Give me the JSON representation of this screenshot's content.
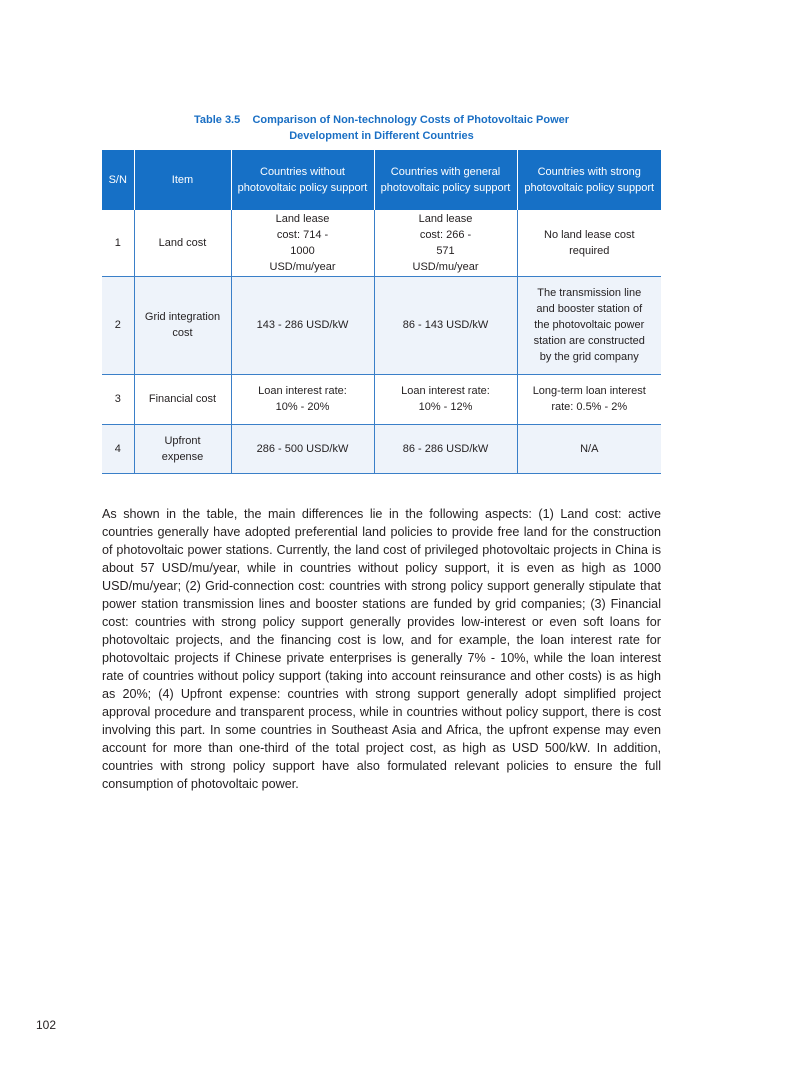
{
  "caption": {
    "line1": "Table 3.5    Comparison of Non-technology Costs of Photovoltaic Power",
    "line2": "Development in Different Countries"
  },
  "table": {
    "headers": [
      "S/N",
      "Item",
      "Countries without photovoltaic policy support",
      "Countries with general photovoltaic policy support",
      "Countries with strong photovoltaic policy support"
    ],
    "rows": [
      [
        "1",
        "Land cost",
        "Land lease cost: 714 - 1000 USD/mu/year",
        "Land lease cost: 266 - 571 USD/mu/year",
        "No land lease cost required"
      ],
      [
        "2",
        "Grid integration cost",
        "143 - 286 USD/kW",
        "86 - 143 USD/kW",
        "The transmission line and booster station of the photovoltaic power station are constructed by the grid company"
      ],
      [
        "3",
        "Financial cost",
        "Loan interest rate: 10% - 20%",
        "Loan interest rate: 10% - 12%",
        "Long-term loan interest rate: 0.5% - 2%"
      ],
      [
        "4",
        "Upfront expense",
        "286 - 500 USD/kW",
        "86 - 286 USD/kW",
        "N/A"
      ]
    ]
  },
  "paragraph": "As shown in the table, the main differences lie in the following aspects: (1) Land cost: active countries generally have adopted preferential land policies to provide free land for the construction of photovoltaic power stations. Currently, the land cost of privileged photovoltaic projects in China is about 57 USD/mu/year, while in countries without policy support, it is even as high as 1000 USD/mu/year; (2) Grid-connection cost: countries with strong policy support generally stipulate that power station transmission lines and booster stations are funded by grid companies; (3) Financial cost: countries with strong policy support generally provides low-interest or even soft loans for photovoltaic projects, and the financing cost is low, and for example, the loan interest rate for photovoltaic projects if Chinese private enterprises is generally 7% - 10%, while the loan interest rate of countries without policy support (taking into account reinsurance and other costs) is as high as 20%; (4) Upfront expense: countries with strong support generally adopt simplified project approval procedure and transparent process, while in countries without policy support, there is cost involving this part. In some countries in Southeast Asia and Africa, the upfront expense may even account for more than one-third of the total project cost, as high as USD 500/kW. In addition, countries with strong policy support have also formulated relevant policies to ensure the full consumption of photovoltaic power.",
  "page_number": "102"
}
